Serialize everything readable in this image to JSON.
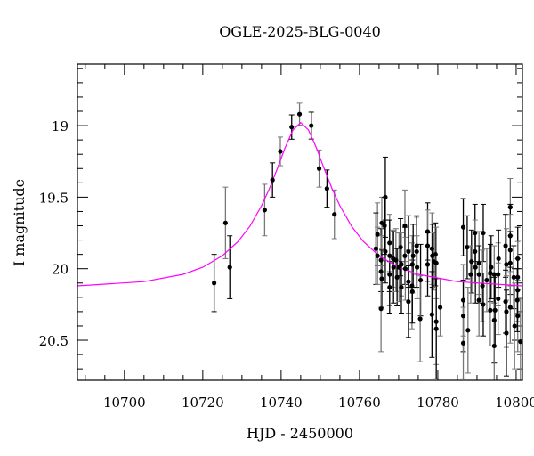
{
  "chart_data": {
    "type": "scatter",
    "title": "OGLE-2025-BLG-0040",
    "xlabel": "HJD - 2450000",
    "ylabel": "I magnitude",
    "xlim": [
      10688,
      10801.6
    ],
    "ylim": [
      20.78,
      18.57
    ],
    "y_inverted": true,
    "x_ticks": [
      10700,
      10720,
      10740,
      10760,
      10780,
      10800
    ],
    "x_tick_labels": [
      "10700",
      "10720",
      "10740",
      "10760",
      "10780",
      "10800"
    ],
    "y_ticks": [
      19,
      19.5,
      20,
      20.5
    ],
    "y_tick_labels": [
      "19",
      "19.5",
      "20",
      "20.5"
    ],
    "grid": false,
    "colors": {
      "points": "#000000",
      "errorbar_a": "#000000",
      "errorbar_b": "#777777",
      "model": "#ff00ff"
    },
    "points_format": [
      "HJD-2450000",
      "I mag",
      "error"
    ],
    "points": [
      [
        10722.9,
        20.1,
        0.2
      ],
      [
        10725.8,
        19.68,
        0.25
      ],
      [
        10726.9,
        19.99,
        0.22
      ],
      [
        10735.8,
        19.59,
        0.18
      ],
      [
        10737.8,
        19.38,
        0.12
      ],
      [
        10739.8,
        19.18,
        0.1
      ],
      [
        10742.7,
        19.01,
        0.085
      ],
      [
        10744.7,
        18.92,
        0.077
      ],
      [
        10747.7,
        19.0,
        0.094
      ],
      [
        10749.7,
        19.3,
        0.13
      ],
      [
        10751.7,
        19.44,
        0.13
      ],
      [
        10753.6,
        19.62,
        0.17
      ],
      [
        10766.6,
        19.5,
        0.28
      ],
      [
        10764.6,
        19.76,
        0.22
      ],
      [
        10764.2,
        19.86,
        0.25
      ],
      [
        10764.6,
        19.91,
        0.2
      ],
      [
        10765.5,
        19.94,
        0.22
      ],
      [
        10765.7,
        19.68,
        0.18
      ],
      [
        10766.4,
        19.7,
        0.2
      ],
      [
        10765.5,
        20.02,
        0.25
      ],
      [
        10765.7,
        20.07,
        0.2
      ],
      [
        10765.5,
        20.28,
        0.3
      ],
      [
        10766.6,
        19.88,
        0.22
      ],
      [
        10767.7,
        19.82,
        0.2
      ],
      [
        10767.7,
        19.91,
        0.25
      ],
      [
        10767.7,
        20.04,
        0.22
      ],
      [
        10767.7,
        20.13,
        0.18
      ],
      [
        10768.6,
        19.93,
        0.2
      ],
      [
        10768.7,
        19.99,
        0.25
      ],
      [
        10769.3,
        19.94,
        0.22
      ],
      [
        10769.6,
        20.06,
        0.2
      ],
      [
        10770.1,
        19.99,
        0.24
      ],
      [
        10770.5,
        19.85,
        0.2
      ],
      [
        10770.7,
        19.97,
        0.22
      ],
      [
        10770.7,
        20.13,
        0.18
      ],
      [
        10771.6,
        19.7,
        0.25
      ],
      [
        10771.6,
        19.91,
        0.2
      ],
      [
        10771.7,
        20.0,
        0.22
      ],
      [
        10772.5,
        19.88,
        0.25
      ],
      [
        10772.5,
        20.09,
        0.22
      ],
      [
        10772.5,
        20.23,
        0.25
      ],
      [
        10773.4,
        20.12,
        0.3
      ],
      [
        10773.5,
        20.16,
        0.22
      ],
      [
        10773.5,
        19.97,
        0.2
      ],
      [
        10773.7,
        19.91,
        0.22
      ],
      [
        10774.6,
        19.84,
        0.2
      ],
      [
        10774.6,
        19.88,
        0.25
      ],
      [
        10774.7,
        19.99,
        0.22
      ],
      [
        10775.6,
        20.08,
        0.25
      ],
      [
        10775.5,
        20.35,
        0.3
      ],
      [
        10777.4,
        19.74,
        0.2
      ],
      [
        10777.4,
        19.84,
        0.25
      ],
      [
        10777.4,
        19.97,
        0.22
      ],
      [
        10778.5,
        19.86,
        0.25
      ],
      [
        10778.6,
        19.91,
        0.22
      ],
      [
        10779.0,
        19.95,
        0.2
      ],
      [
        10779.4,
        19.9,
        0.22
      ],
      [
        10779.6,
        19.96,
        0.25
      ],
      [
        10778.5,
        20.32,
        0.3
      ],
      [
        10779.6,
        20.37,
        0.3
      ],
      [
        10779.6,
        20.42,
        0.35
      ],
      [
        10780.6,
        20.27,
        0.2
      ],
      [
        10786.5,
        19.71,
        0.2
      ],
      [
        10786.5,
        20.22,
        0.25
      ],
      [
        10786.5,
        20.33,
        0.25
      ],
      [
        10786.5,
        20.52,
        0.25
      ],
      [
        10787.5,
        19.85,
        0.22
      ],
      [
        10787.7,
        20.43,
        0.3
      ],
      [
        10788.6,
        19.95,
        0.22
      ],
      [
        10788.4,
        20.04,
        0.2
      ],
      [
        10789.5,
        19.75,
        0.2
      ],
      [
        10789.5,
        19.88,
        0.22
      ],
      [
        10789.6,
        19.99,
        0.25
      ],
      [
        10790.5,
        19.96,
        0.22
      ],
      [
        10790.5,
        20.04,
        0.2
      ],
      [
        10790.5,
        20.22,
        0.25
      ],
      [
        10791.6,
        19.75,
        0.2
      ],
      [
        10791.4,
        20.12,
        0.25
      ],
      [
        10791.6,
        20.25,
        0.22
      ],
      [
        10792.5,
        20.08,
        0.22
      ],
      [
        10793.4,
        20.03,
        0.2
      ],
      [
        10793.4,
        20.29,
        0.25
      ],
      [
        10793.6,
        19.99,
        0.22
      ],
      [
        10794.4,
        20.04,
        0.2
      ],
      [
        10794.4,
        20.36,
        0.3
      ],
      [
        10794.4,
        20.54,
        0.3
      ],
      [
        10794.6,
        20.29,
        0.25
      ],
      [
        10795.4,
        20.04,
        0.22
      ],
      [
        10795.5,
        19.93,
        0.2
      ],
      [
        10795.4,
        20.21,
        0.25
      ],
      [
        10797.3,
        19.84,
        0.22
      ],
      [
        10797.5,
        19.97,
        0.25
      ],
      [
        10797.3,
        20.23,
        0.22
      ],
      [
        10797.5,
        20.3,
        0.25
      ],
      [
        10797.5,
        20.45,
        0.3
      ],
      [
        10798.5,
        19.57,
        0.2
      ],
      [
        10798.5,
        19.77,
        0.22
      ],
      [
        10798.5,
        19.87,
        0.25
      ],
      [
        10798.5,
        19.96,
        0.22
      ],
      [
        10798.5,
        20.27,
        0.25
      ],
      [
        10799.4,
        20.06,
        0.22
      ],
      [
        10799.6,
        20.4,
        0.3
      ],
      [
        10800.4,
        19.93,
        0.22
      ],
      [
        10800.4,
        20.06,
        0.25
      ],
      [
        10800.4,
        20.15,
        0.22
      ],
      [
        10800.4,
        20.33,
        0.25
      ],
      [
        10800.3,
        20.22,
        0.22
      ],
      [
        10801.1,
        20.51,
        0.3
      ]
    ],
    "model": {
      "x": [
        10688,
        10705,
        10715,
        10720,
        10725,
        10729,
        10732,
        10735,
        10737,
        10739,
        10741,
        10743,
        10745,
        10747,
        10749,
        10751,
        10753,
        10755,
        10758,
        10761,
        10765,
        10770,
        10775,
        10785,
        10801.6
      ],
      "y": [
        20.12,
        20.09,
        20.039,
        19.99,
        19.91,
        19.81,
        19.704,
        19.56,
        19.441,
        19.302,
        19.155,
        19.031,
        18.979,
        19.031,
        19.155,
        19.302,
        19.441,
        19.56,
        19.704,
        19.81,
        19.91,
        19.99,
        20.039,
        20.09,
        20.12
      ]
    }
  }
}
